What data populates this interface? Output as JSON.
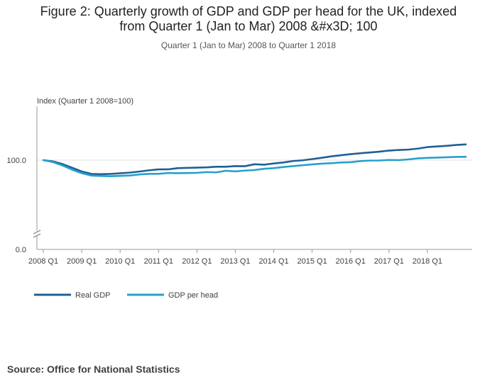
{
  "title_lines": [
    "Figure 2: Quarterly growth of GDP and GDP per head for the UK, indexed",
    "from Quarter 1 (Jan to Mar) 2008 &#x3D; 100"
  ],
  "subtitle": "Quarter 1 (Jan to Mar) 2008 to Quarter 1 2018",
  "source": "Source: Office for National Statistics",
  "chart_data": {
    "type": "line",
    "ylabel": "Index (Quarter 1 2008=100)",
    "ylim": [
      0,
      110
    ],
    "y_axis_break": true,
    "yticks": [
      {
        "value": 0,
        "label": "0.0"
      },
      {
        "value": 100,
        "label": "100.0"
      }
    ],
    "xticks": [
      "2008 Q1",
      "2009 Q1",
      "2010 Q1",
      "2011 Q1",
      "2012 Q1",
      "2013 Q1",
      "2014 Q1",
      "2015 Q1",
      "2016 Q1",
      "2017 Q1",
      "2018 Q1"
    ],
    "legend_position": "bottom-left",
    "grid": "horizontal",
    "series": [
      {
        "name": "Real GDP",
        "color": "#206095",
        "values": [
          100.0,
          98.6,
          95.6,
          91.5,
          87.3,
          84.6,
          84.3,
          84.6,
          85.3,
          86.0,
          87.2,
          88.6,
          89.6,
          89.7,
          91.0,
          91.3,
          91.6,
          91.9,
          92.6,
          92.6,
          93.3,
          93.2,
          95.4,
          94.9,
          96.3,
          97.4,
          99.0,
          99.8,
          101.2,
          102.6,
          104.2,
          105.5,
          106.7,
          107.7,
          108.6,
          109.5,
          110.7,
          111.4,
          111.8,
          112.9,
          114.6,
          115.3,
          116.0,
          117.0,
          117.6
        ]
      },
      {
        "name": "GDP per head",
        "color": "#27a0cc",
        "values": [
          100.0,
          97.8,
          94.0,
          89.3,
          85.4,
          82.7,
          82.3,
          82.0,
          82.4,
          82.8,
          84.0,
          84.7,
          84.7,
          85.6,
          85.4,
          85.6,
          85.8,
          86.6,
          86.3,
          88.1,
          87.4,
          88.3,
          88.9,
          90.3,
          91.0,
          92.3,
          93.3,
          94.3,
          95.2,
          96.1,
          96.6,
          97.4,
          97.7,
          98.9,
          99.5,
          99.6,
          100.2,
          100.0,
          100.8,
          102.0,
          102.5,
          102.8,
          103.2,
          103.6,
          103.7
        ]
      }
    ]
  }
}
